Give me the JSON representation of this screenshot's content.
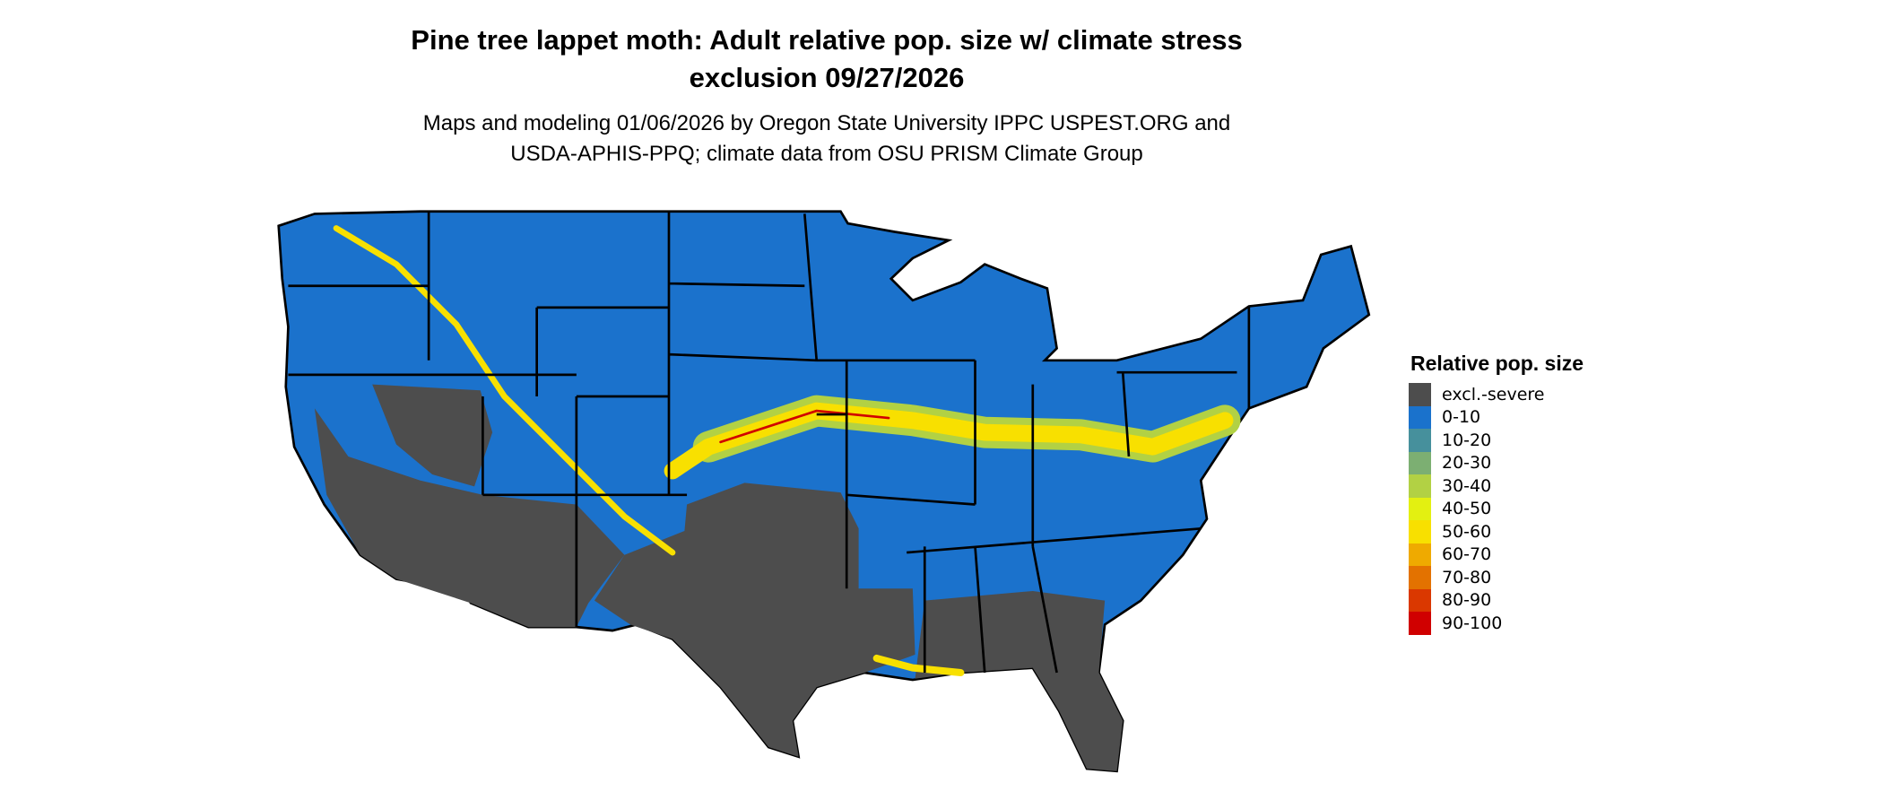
{
  "title": {
    "line1": "Pine tree lappet moth: Adult relative pop. size w/ climate stress",
    "line2": "exclusion 09/27/2026"
  },
  "subtitle": {
    "line1": "Maps and modeling 01/06/2026 by Oregon State University IPPC USPEST.ORG and",
    "line2": "USDA-APHIS-PPQ; climate data from OSU PRISM Climate Group"
  },
  "map": {
    "region": "Contiguous United States",
    "dominant_class": "0-10",
    "colors": {
      "excluded": "#4d4d4d",
      "low": "#1b72cc",
      "band": "#f5e000",
      "peak": "#d10000",
      "border": "#000000"
    }
  },
  "legend": {
    "title": "Relative pop. size",
    "items": [
      {
        "label": "excl.-severe",
        "color": "#4d4d4d"
      },
      {
        "label": "0-10",
        "color": "#1a72cc"
      },
      {
        "label": "10-20",
        "color": "#46909c"
      },
      {
        "label": "20-30",
        "color": "#7caf72"
      },
      {
        "label": "30-40",
        "color": "#b2d144"
      },
      {
        "label": "40-50",
        "color": "#e3f011"
      },
      {
        "label": "50-60",
        "color": "#f8e000"
      },
      {
        "label": "60-70",
        "color": "#efaa00"
      },
      {
        "label": "70-80",
        "color": "#e37200"
      },
      {
        "label": "80-90",
        "color": "#da3800"
      },
      {
        "label": "90-100",
        "color": "#d00000"
      }
    ]
  }
}
